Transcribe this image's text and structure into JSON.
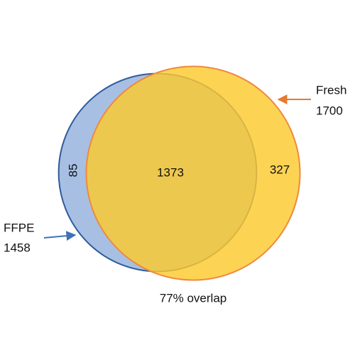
{
  "chart_data": {
    "type": "venn",
    "sets": [
      {
        "name": "FFPE",
        "size": 1458,
        "color": "#a7bfe3",
        "stroke": "#2f5b9c"
      },
      {
        "name": "Fresh",
        "size": 1700,
        "color": "#fcc92e",
        "stroke": "#ef8a3c"
      }
    ],
    "only_values": [
      85,
      327
    ],
    "overlap_value": 1373,
    "annotation": "77% overlap"
  }
}
